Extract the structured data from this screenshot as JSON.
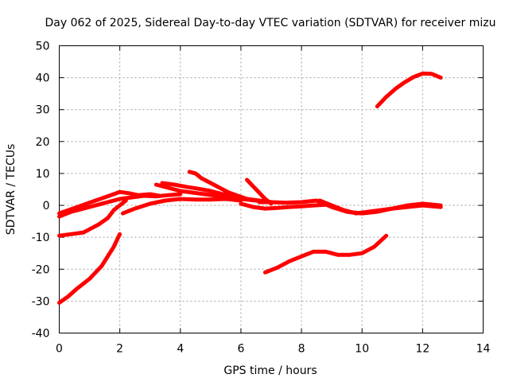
{
  "chart_data": {
    "type": "line",
    "title": "Day 062 of 2025, Sidereal Day-to-day VTEC variation (SDTVAR) for receiver mizu",
    "xlabel": "GPS time / hours",
    "ylabel": "SDTVAR / TECUs",
    "xlim": [
      0,
      14
    ],
    "ylim": [
      -40,
      50
    ],
    "xticks": [
      0,
      2,
      4,
      6,
      8,
      10,
      12,
      14
    ],
    "yticks": [
      -40,
      -30,
      -20,
      -10,
      0,
      10,
      20,
      30,
      40,
      50
    ],
    "grid": true,
    "color": "#ff0000",
    "series": [
      {
        "name": "trace-1",
        "x": [
          0,
          0.3,
          0.6,
          1.0,
          1.4,
          1.8,
          2.0
        ],
        "y": [
          -30.5,
          -28.5,
          -26,
          -23,
          -19,
          -13,
          -9
        ]
      },
      {
        "name": "trace-2",
        "x": [
          0,
          0.4,
          0.8,
          1.0,
          1.3,
          1.6,
          1.8,
          2.0,
          2.2
        ],
        "y": [
          -9.5,
          -9,
          -8.5,
          -7.5,
          -6,
          -4,
          -1.5,
          0,
          1.5
        ]
      },
      {
        "name": "trace-3",
        "x": [
          0,
          0.3,
          0.6,
          0.9,
          1.2,
          1.5,
          1.8,
          2.0,
          2.3,
          2.6,
          3.0,
          3.3
        ],
        "y": [
          -2.5,
          -1.5,
          -0.5,
          0.5,
          1.5,
          2.5,
          3.5,
          4.2,
          3.8,
          3.2,
          3.5,
          3
        ]
      },
      {
        "name": "trace-4",
        "x": [
          0,
          0.4,
          0.8,
          1.2,
          1.6,
          2.0,
          2.4,
          2.8,
          3.2,
          3.6,
          4.0
        ],
        "y": [
          -3.5,
          -2,
          -1,
          0,
          1,
          2,
          2.5,
          3,
          2.8,
          3.2,
          3.5
        ]
      },
      {
        "name": "trace-5",
        "x": [
          2.1,
          2.5,
          3.0,
          3.5,
          4.0,
          4.5,
          5.0,
          5.5,
          6.0
        ],
        "y": [
          -2.5,
          -1,
          0.5,
          1.5,
          2,
          1.8,
          1.8,
          2,
          1.5
        ]
      },
      {
        "name": "trace-6",
        "x": [
          3.2,
          3.6,
          4.0,
          4.4,
          4.8,
          5.2,
          5.6,
          6.0,
          6.5,
          7.0
        ],
        "y": [
          6.5,
          5.5,
          4.5,
          4,
          3.5,
          3,
          2.5,
          2,
          1.5,
          1
        ]
      },
      {
        "name": "trace-7",
        "x": [
          3.4,
          3.8,
          4.2,
          4.6,
          5.0,
          5.4,
          5.8,
          6.2,
          6.6,
          7.0
        ],
        "y": [
          7,
          6.5,
          5.8,
          5.2,
          4.5,
          3.5,
          2.8,
          2,
          1.5,
          1
        ]
      },
      {
        "name": "trace-8",
        "x": [
          4.3,
          4.5,
          4.7,
          5.0,
          5.3,
          5.6,
          5.9,
          6.2
        ],
        "y": [
          10.5,
          10,
          8.5,
          7,
          5.5,
          4,
          3,
          2
        ]
      },
      {
        "name": "trace-9",
        "x": [
          6.0,
          6.4,
          6.8,
          7.2,
          7.6,
          8.0,
          8.4,
          8.8
        ],
        "y": [
          0.5,
          -0.5,
          -1,
          -0.8,
          -0.5,
          -0.3,
          0,
          0.2
        ]
      },
      {
        "name": "trace-10",
        "x": [
          6.2,
          6.5,
          6.8,
          7.0
        ],
        "y": [
          8,
          5,
          2,
          0.5
        ]
      },
      {
        "name": "trace-11",
        "x": [
          6.6,
          7.0,
          7.5,
          8.0,
          8.5,
          9.0,
          9.5,
          10.0,
          10.5,
          11.0,
          11.5,
          12.0,
          12.6
        ],
        "y": [
          1,
          1,
          0.8,
          1,
          1.5,
          -0.5,
          -2,
          -2.5,
          -2,
          -1,
          -0.5,
          0,
          -0.5
        ]
      },
      {
        "name": "trace-12",
        "x": [
          8.6,
          9.0,
          9.4,
          9.8,
          10.2,
          10.6,
          11.0,
          11.5,
          12.0,
          12.6
        ],
        "y": [
          1.5,
          0,
          -1.5,
          -2.5,
          -2,
          -1.5,
          -1,
          0,
          0.5,
          0
        ]
      },
      {
        "name": "trace-13",
        "x": [
          6.8,
          7.2,
          7.6,
          8.0,
          8.4,
          8.8,
          9.2,
          9.6,
          10.0,
          10.4,
          10.8
        ],
        "y": [
          -21,
          -19.5,
          -17.5,
          -16,
          -14.5,
          -14.5,
          -15.5,
          -15.5,
          -15,
          -13,
          -9.5
        ]
      },
      {
        "name": "trace-14",
        "x": [
          10.5,
          10.8,
          11.1,
          11.4,
          11.7,
          12.0,
          12.3,
          12.6
        ],
        "y": [
          31,
          34,
          36.5,
          38.5,
          40.2,
          41.3,
          41.2,
          40
        ]
      }
    ]
  }
}
